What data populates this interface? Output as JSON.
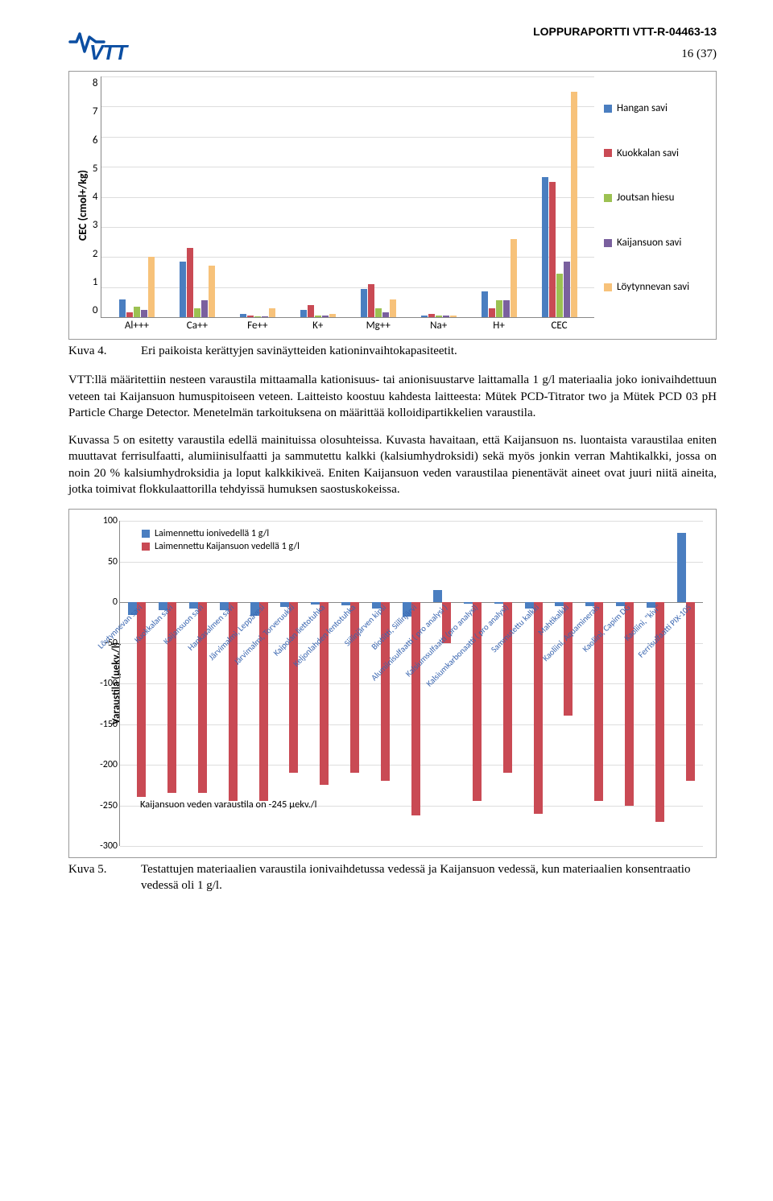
{
  "header": {
    "report_id": "LOPPURAPORTTI VTT-R-04463-13",
    "page_num": "16 (37)"
  },
  "chart1": {
    "type": "bar",
    "y_label": "CEC (cmol+/kg)",
    "y_max": 8,
    "y_ticks": [
      "8",
      "7",
      "6",
      "5",
      "4",
      "3",
      "2",
      "1",
      "0"
    ],
    "categories": [
      "Al+++",
      "Ca++",
      "Fe++",
      "K+",
      "Mg++",
      "Na+",
      "H+",
      "CEC"
    ],
    "series": [
      {
        "name": "Hangan savi",
        "color": "#4a7ec0"
      },
      {
        "name": "Kuokkalan savi",
        "color": "#c94a54"
      },
      {
        "name": "Joutsan hiesu",
        "color": "#9cc152"
      },
      {
        "name": "Kaijansuon savi",
        "color": "#7a609e"
      },
      {
        "name": "Löytynnevan savi",
        "color": "#f7c27a"
      }
    ],
    "data": [
      [
        0.6,
        0.15,
        0.35,
        0.25,
        2.0
      ],
      [
        1.85,
        2.3,
        0.3,
        0.55,
        1.7
      ],
      [
        0.1,
        0.05,
        0.03,
        0.03,
        0.3
      ],
      [
        0.25,
        0.4,
        0.05,
        0.05,
        0.1
      ],
      [
        0.95,
        1.1,
        0.3,
        0.15,
        0.6
      ],
      [
        0.05,
        0.1,
        0.05,
        0.05,
        0.05
      ],
      [
        0.85,
        0.3,
        0.55,
        0.55,
        2.6
      ],
      [
        4.65,
        4.5,
        1.45,
        1.85,
        7.5
      ]
    ]
  },
  "caption1": {
    "label": "Kuva 4.",
    "text": "Eri paikoista kerättyjen savinäytteiden kationinvaihtokapasiteetit."
  },
  "para1": "VTT:llä määritettiin nesteen varaustila mittaamalla kationisuus- tai anionisuustarve laittamalla 1 g/l materiaalia joko ionivaihdettuun veteen tai Kaijansuon humuspitoiseen veteen. Laitteisto koostuu kahdesta laitteesta: Mütek PCD-Titrator two ja Mütek PCD 03 pH Particle Charge Detector. Menetelmän tarkoituksena on määrittää kolloidipartikkelien varaustila.",
  "para2": "Kuvassa 5 on esitetty varaustila edellä mainituissa olosuhteissa. Kuvasta havaitaan, että Kaijansuon ns. luontaista varaustilaa eniten muuttavat ferrisulfaatti, alumiinisulfaatti ja sammutettu kalkki (kalsiumhydroksidi) sekä myös jonkin verran Mahtikalkki, jossa on noin 20 % kalsiumhydroksidia ja loput kalkkikiveä. Eniten Kaijansuon veden varaustilaa pienentävät aineet ovat juuri niitä aineita, jotka toimivat flokkulaattorilla tehdyissä humuksen saostuskokeissa.",
  "chart2": {
    "type": "bar",
    "y_label": "Varaustila (µekv./l)",
    "y_min": -300,
    "y_max": 100,
    "y_ticks": [
      100,
      50,
      0,
      -50,
      -100,
      -150,
      -200,
      -250,
      -300
    ],
    "series": [
      {
        "name": "Laimennettu ionivedellä 1 g/l",
        "color": "#4a7ec0"
      },
      {
        "name": "Laimennettu Kaijansuon vedellä 1 g/l",
        "color": "#c94a54"
      }
    ],
    "footnote": "Kaijansuon veden varaustila on -245 µekv./l",
    "categories": [
      "Löytynnevan savi",
      "Kuokkalan savi",
      "Kaijansuon savi",
      "Hankasalmen savi",
      "Järvimalmi, Leppävesi",
      "Järvimalmi, Torveruukki",
      "Kaipolan liettotuhka",
      "Keljonlahden lentotuhka",
      "Siilinjärven kipsi",
      "Biotiitti, Siilinjärvi",
      "Alumiinisulfaatti ( pro analysi )",
      "Kalsiumsulfaatti (pro analysi)",
      "Kalsiumkarbonaatti ( pro analysi)",
      "Sammutettu kalkki",
      "Mahtikalkki",
      "Kaoliini, Aquaminerals",
      "Kaoliini, Capim DG",
      "Kaoliini, \"kivi\"",
      "Ferrisulfaatti PIX-105"
    ],
    "data": [
      [
        -16,
        -240
      ],
      [
        -10,
        -235
      ],
      [
        -8,
        -235
      ],
      [
        -10,
        -245
      ],
      [
        -17,
        -245
      ],
      [
        -6,
        -210
      ],
      [
        -3,
        -225
      ],
      [
        -4,
        -210
      ],
      [
        -8,
        -220
      ],
      [
        -18,
        -262
      ],
      [
        15,
        -50
      ],
      [
        -2,
        -245
      ],
      [
        -2,
        -210
      ],
      [
        -8,
        -260
      ],
      [
        -5,
        -140
      ],
      [
        -5,
        -245
      ],
      [
        -5,
        -250
      ],
      [
        -7,
        -270
      ],
      [
        85,
        -220
      ]
    ]
  },
  "caption2": {
    "label": "Kuva 5.",
    "text": "Testattujen materiaalien varaustila ionivaihdetussa vedessä ja Kaijansuon vedessä, kun materiaalien konsentraatio vedessä oli 1 g/l."
  }
}
